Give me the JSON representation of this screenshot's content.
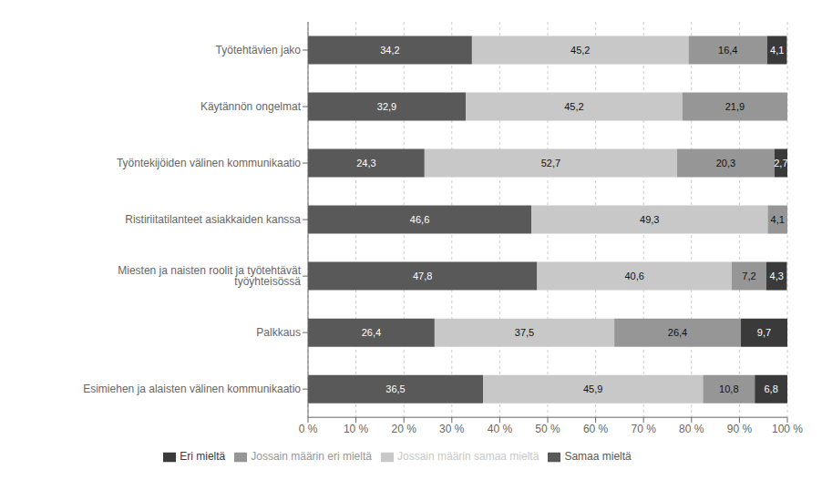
{
  "chart_data": {
    "type": "bar",
    "orientation": "horizontal",
    "stacked": true,
    "data_labels": true,
    "grid": true,
    "legend": "bottom",
    "categories": [
      "Työtehtävien jako",
      "Käytännön ongelmat",
      "Työntekijöiden välinen kommunikaatio",
      "Ristiriitatilanteet asiakkaiden kanssa",
      "Miesten ja naisten roolit ja työtehtävät työyhteisössä",
      "Palkkaus",
      "Esimiehen ja alaisten välinen kommunikaatio"
    ],
    "series": [
      {
        "name": "Samaa mieltä",
        "color": "#595959",
        "values": [
          34.2,
          32.9,
          24.3,
          46.6,
          47.8,
          26.4,
          36.5
        ],
        "value_labels": [
          "34,2",
          "32,9",
          "24,3",
          "46,6",
          "47,8",
          "26,4",
          "36,5"
        ]
      },
      {
        "name": "Jossain määrin samaa mieltä",
        "color": "#c8c8c8",
        "values": [
          45.2,
          45.2,
          52.7,
          49.3,
          40.6,
          37.5,
          45.9
        ],
        "value_labels": [
          "45,2",
          "45,2",
          "52,7",
          "49,3",
          "40,6",
          "37,5",
          "45,9"
        ]
      },
      {
        "name": "Jossain määrin eri mieltä",
        "color": "#969696",
        "values": [
          16.4,
          21.9,
          20.3,
          4.1,
          7.2,
          26.4,
          10.8
        ],
        "value_labels": [
          "16,4",
          "21,9",
          "20,3",
          "4,1",
          "7,2",
          "26,4",
          "10,8"
        ]
      },
      {
        "name": "Eri mieltä",
        "color": "#3a3a3a",
        "values": [
          4.1,
          0.0,
          2.7,
          0.0,
          4.3,
          9.7,
          6.8
        ],
        "value_labels": [
          "4,1",
          null,
          "2,7",
          null,
          "4,3",
          "9,7",
          "6,8"
        ]
      }
    ],
    "xlim": [
      0,
      100
    ],
    "xticks": [
      {
        "value": 0,
        "label": "0 %"
      },
      {
        "value": 10,
        "label": "10 %"
      },
      {
        "value": 20,
        "label": "20 %"
      },
      {
        "value": 30,
        "label": "30 %"
      },
      {
        "value": 40,
        "label": "40 %"
      },
      {
        "value": 50,
        "label": "50 %"
      },
      {
        "value": 60,
        "label": "60 %"
      },
      {
        "value": 70,
        "label": "70 %"
      },
      {
        "value": 80,
        "label": "80 %"
      },
      {
        "value": 90,
        "label": "90 %"
      },
      {
        "value": 100,
        "label": "100 %"
      }
    ]
  }
}
